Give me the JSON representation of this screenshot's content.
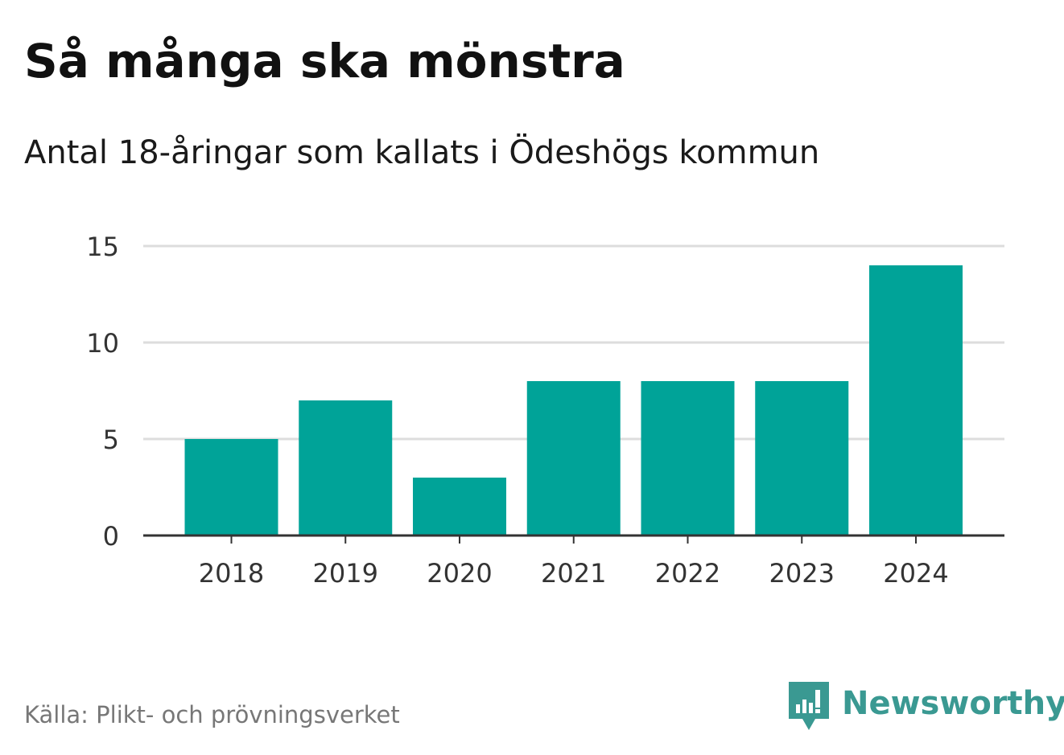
{
  "header": {
    "title": "Så många ska mönstra",
    "subtitle": "Antal 18-åringar som kallats i Ödeshögs kommun"
  },
  "footer": {
    "source": "Källa: Plikt- och prövningsverket",
    "brand": "Newsworthy",
    "brand_icon": "newsworthy-logo-icon"
  },
  "colors": {
    "bar": "#00a398",
    "grid": "#dddddd",
    "axis": "#333333",
    "tick_text": "#333333",
    "brand": "#3a9992"
  },
  "chart_data": {
    "type": "bar",
    "title": "Så många ska mönstra",
    "subtitle": "Antal 18-åringar som kallats i Ödeshögs kommun",
    "categories": [
      "2018",
      "2019",
      "2020",
      "2021",
      "2022",
      "2023",
      "2024"
    ],
    "values": [
      5,
      7,
      3,
      8,
      8,
      8,
      14
    ],
    "xlabel": "",
    "ylabel": "",
    "ylim": [
      0,
      15
    ],
    "yticks": [
      0,
      5,
      10,
      15
    ],
    "ytick_labels": [
      "0",
      "5",
      "10",
      "15"
    ],
    "grid": true,
    "legend": "none"
  }
}
